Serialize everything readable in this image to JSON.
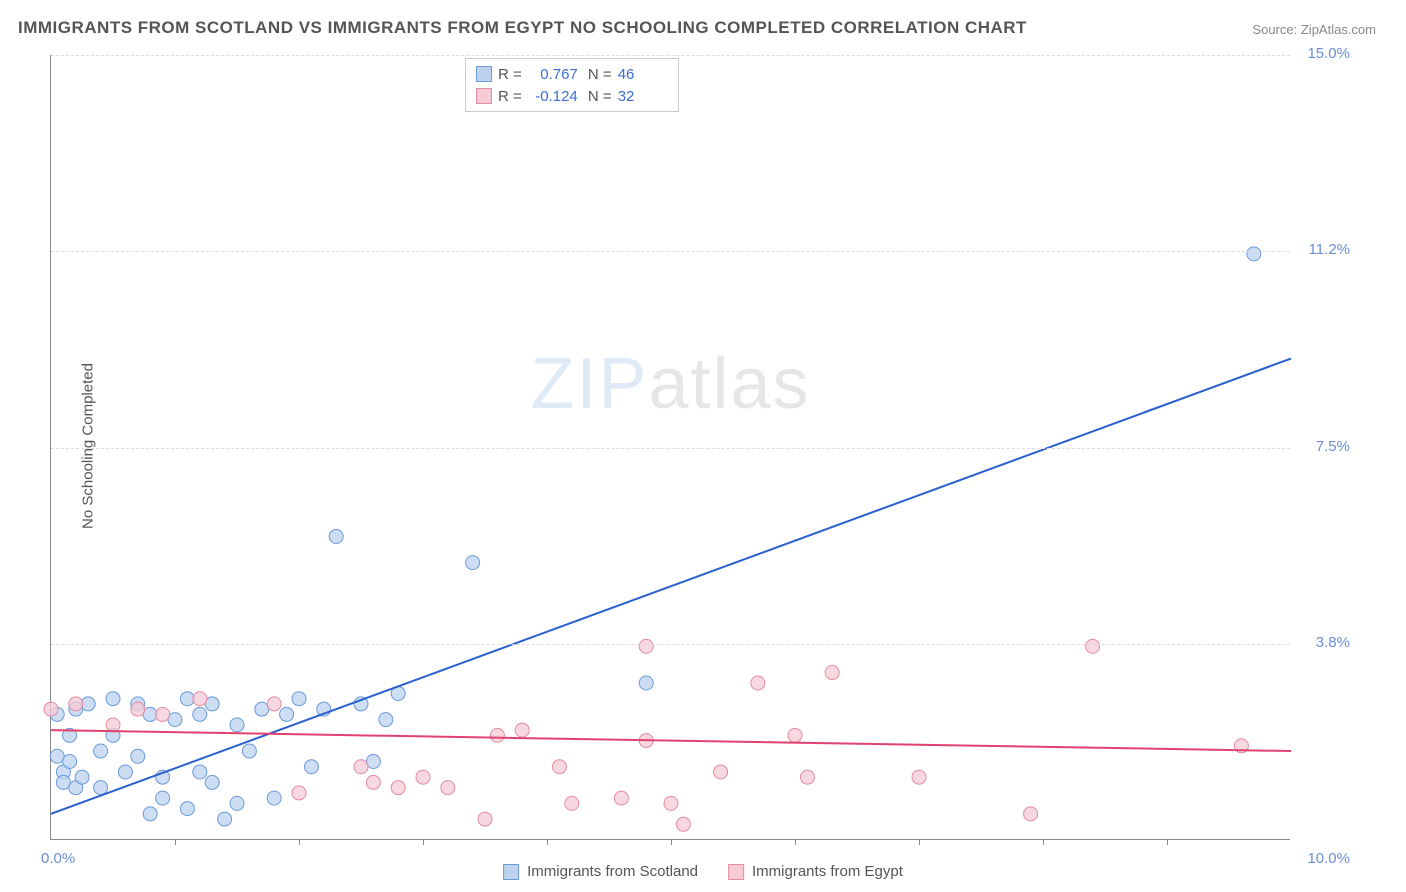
{
  "title": "IMMIGRANTS FROM SCOTLAND VS IMMIGRANTS FROM EGYPT NO SCHOOLING COMPLETED CORRELATION CHART",
  "source_label": "Source:",
  "source_name": "ZipAtlas.com",
  "ylabel": "No Schooling Completed",
  "watermark": {
    "left": "ZIP",
    "right": "atlas"
  },
  "chart": {
    "type": "scatter",
    "xlim": [
      0,
      10
    ],
    "ylim": [
      0,
      15
    ],
    "x_left_label": "0.0%",
    "x_right_label": "10.0%",
    "y_ticks": [
      {
        "value": 3.75,
        "label": "3.8%"
      },
      {
        "value": 7.5,
        "label": "7.5%"
      },
      {
        "value": 11.25,
        "label": "11.2%"
      },
      {
        "value": 15,
        "label": "15.0%"
      }
    ],
    "x_tick_step": 1,
    "background_color": "#ffffff",
    "grid_color": "#dddddd",
    "axis_color": "#888888",
    "series": [
      {
        "name": "Immigrants from Scotland",
        "fill": "#bcd2ef",
        "stroke": "#6b9bd8",
        "line_color": "#2a5fd0",
        "trend": {
          "x1": 0,
          "y1": 0.5,
          "x2": 10,
          "y2": 9.2
        },
        "R": "0.767",
        "N": "46",
        "marker_radius": 7,
        "points": [
          [
            0.05,
            2.4
          ],
          [
            0.05,
            1.6
          ],
          [
            0.1,
            1.3
          ],
          [
            0.1,
            1.1
          ],
          [
            0.15,
            1.5
          ],
          [
            0.15,
            2.0
          ],
          [
            0.2,
            1.0
          ],
          [
            0.2,
            2.5
          ],
          [
            0.25,
            1.2
          ],
          [
            0.3,
            2.6
          ],
          [
            0.4,
            1.7
          ],
          [
            0.4,
            1.0
          ],
          [
            0.5,
            2.0
          ],
          [
            0.5,
            2.7
          ],
          [
            0.6,
            1.3
          ],
          [
            0.7,
            2.6
          ],
          [
            0.7,
            1.6
          ],
          [
            0.8,
            2.4
          ],
          [
            0.8,
            0.5
          ],
          [
            0.9,
            0.8
          ],
          [
            0.9,
            1.2
          ],
          [
            1.0,
            2.3
          ],
          [
            1.1,
            2.7
          ],
          [
            1.1,
            0.6
          ],
          [
            1.2,
            1.3
          ],
          [
            1.2,
            2.4
          ],
          [
            1.3,
            1.1
          ],
          [
            1.3,
            2.6
          ],
          [
            1.4,
            0.4
          ],
          [
            1.5,
            2.2
          ],
          [
            1.5,
            0.7
          ],
          [
            1.6,
            1.7
          ],
          [
            1.7,
            2.5
          ],
          [
            1.8,
            0.8
          ],
          [
            1.9,
            2.4
          ],
          [
            2.0,
            2.7
          ],
          [
            2.1,
            1.4
          ],
          [
            2.2,
            2.5
          ],
          [
            2.3,
            5.8
          ],
          [
            2.5,
            2.6
          ],
          [
            2.6,
            1.5
          ],
          [
            2.7,
            2.3
          ],
          [
            2.8,
            2.8
          ],
          [
            3.4,
            5.3
          ],
          [
            4.8,
            3.0
          ],
          [
            9.7,
            11.2
          ]
        ]
      },
      {
        "name": "Immigrants from Egypt",
        "fill": "#f6cbd5",
        "stroke": "#e38ca4",
        "line_color": "#e0416f",
        "trend": {
          "x1": 0,
          "y1": 2.1,
          "x2": 10,
          "y2": 1.7
        },
        "R": "-0.124",
        "N": "32",
        "marker_radius": 7,
        "points": [
          [
            0.0,
            2.5
          ],
          [
            0.2,
            2.6
          ],
          [
            0.5,
            2.2
          ],
          [
            0.7,
            2.5
          ],
          [
            0.9,
            2.4
          ],
          [
            1.2,
            2.7
          ],
          [
            1.8,
            2.6
          ],
          [
            2.0,
            0.9
          ],
          [
            2.5,
            1.4
          ],
          [
            2.6,
            1.1
          ],
          [
            2.8,
            1.0
          ],
          [
            3.0,
            1.2
          ],
          [
            3.2,
            1.0
          ],
          [
            3.5,
            0.4
          ],
          [
            3.6,
            2.0
          ],
          [
            3.8,
            2.1
          ],
          [
            4.1,
            1.4
          ],
          [
            4.2,
            0.7
          ],
          [
            4.6,
            0.8
          ],
          [
            4.8,
            3.7
          ],
          [
            4.8,
            1.9
          ],
          [
            5.0,
            0.7
          ],
          [
            5.1,
            0.3
          ],
          [
            5.4,
            1.3
          ],
          [
            5.7,
            3.0
          ],
          [
            6.0,
            2.0
          ],
          [
            6.1,
            1.2
          ],
          [
            6.3,
            3.2
          ],
          [
            7.0,
            1.2
          ],
          [
            7.9,
            0.5
          ],
          [
            8.4,
            3.7
          ],
          [
            9.6,
            1.8
          ]
        ]
      }
    ]
  },
  "stats_value_color": "#3b6fd0",
  "bottom_legend": {
    "items": [
      {
        "label": "Immigrants from Scotland",
        "fill": "#bcd2ef",
        "stroke": "#6b9bd8"
      },
      {
        "label": "Immigrants from Egypt",
        "fill": "#f6cbd5",
        "stroke": "#e38ca4"
      }
    ]
  }
}
